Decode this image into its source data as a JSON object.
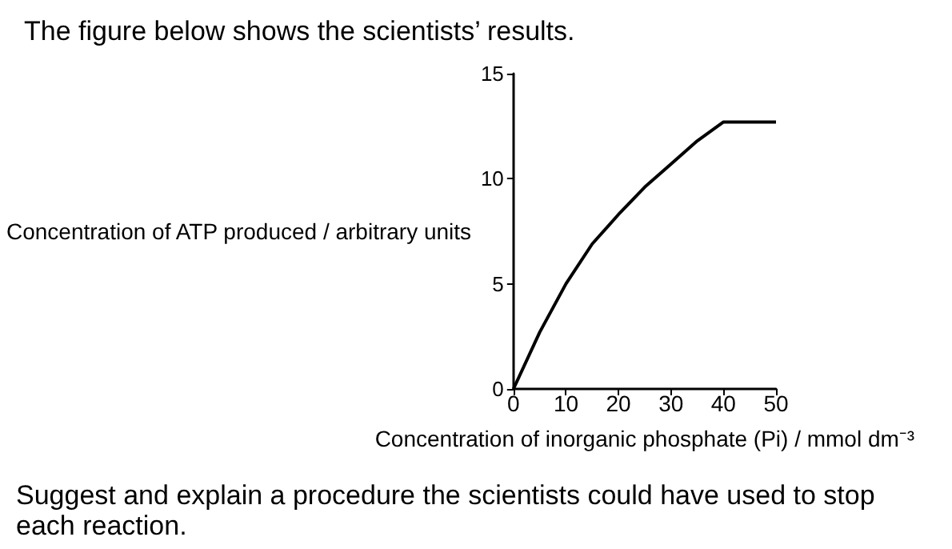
{
  "chart_data": {
    "type": "line",
    "title": "The figure below shows the scientists’ results.",
    "xlabel": "Concentration of inorganic phosphate (Pi) / mmol dm⁻³",
    "ylabel": "Concentration of ATP produced / arbitrary units",
    "annotations": [
      "Suggest and explain a procedure the scientists could have used to stop each reaction."
    ],
    "x": [
      0,
      5,
      10,
      15,
      20,
      25,
      30,
      35,
      40,
      50
    ],
    "series": [
      {
        "color": "#000000",
        "values": [
          0,
          2.7,
          5,
          6.9,
          8.3,
          9.6,
          10.7,
          11.8,
          12.7,
          12.7
        ]
      }
    ],
    "xlim": [
      0,
      50
    ],
    "xticks": [
      0,
      10,
      20,
      30,
      40,
      50
    ],
    "ylim": [
      0,
      15
    ],
    "yticks": [
      0,
      5,
      10,
      15
    ],
    "grid": false,
    "marker": "none",
    "line_style": "solid"
  }
}
